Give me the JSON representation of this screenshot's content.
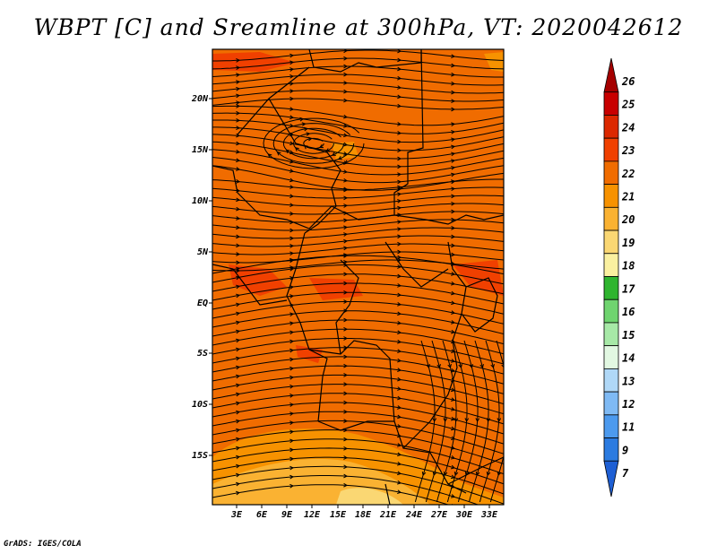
{
  "title": "WBPT [C] and Sreamline at 300hPa, VT: 2020042612",
  "footer": "GrADS: IGES/COLA",
  "y_labels": [
    "20N",
    "15N",
    "10N",
    "5N",
    "EQ",
    "5S",
    "10S",
    "15S"
  ],
  "x_labels": [
    "3E",
    "6E",
    "9E",
    "12E",
    "15E",
    "18E",
    "21E",
    "24E",
    "27E",
    "30E",
    "33E"
  ],
  "colorbar": {
    "labels": [
      "26",
      "25",
      "24",
      "23",
      "22",
      "21",
      "20",
      "19",
      "18",
      "17",
      "16",
      "15",
      "14",
      "13",
      "12",
      "11",
      "9",
      "7"
    ],
    "colors": [
      "#a50000",
      "#c80000",
      "#dc2800",
      "#f04000",
      "#f06c00",
      "#f79200",
      "#fab232",
      "#fad773",
      "#faf0a0",
      "#2fb52f",
      "#6fd46f",
      "#a7e9a7",
      "#e2f8e2",
      "#b0d8f7",
      "#7fbaf4",
      "#4c9aee",
      "#2b7be0",
      "#1e5fd4"
    ]
  },
  "fill_colors": {
    "main": "#f06c00",
    "warm": "#f04000",
    "cool": "#f79200",
    "cooler": "#fab232",
    "coolest": "#fad773"
  },
  "line_color": "#000000"
}
